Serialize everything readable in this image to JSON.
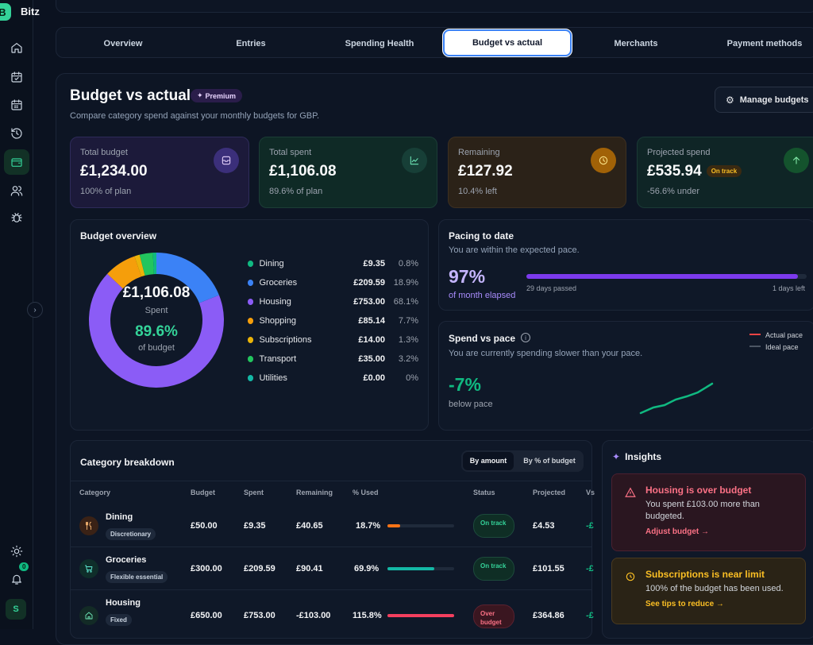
{
  "app": {
    "brand": "Bitz",
    "logo_letter": "B",
    "avatar": "S",
    "notif_badge": "0"
  },
  "tabs": [
    "Overview",
    "Entries",
    "Spending Health",
    "Budget vs actual",
    "Merchants",
    "Payment methods"
  ],
  "header": {
    "title": "Budget vs actual",
    "premium": "Premium",
    "subtitle": "Compare category spend against your monthly budgets for GBP.",
    "manage": "Manage budgets"
  },
  "cards": [
    {
      "label": "Total budget",
      "value": "£1,234.00",
      "note": "100% of plan",
      "icon": "inbox-icon"
    },
    {
      "label": "Total spent",
      "value": "£1,106.08",
      "note": "89.6% of plan",
      "icon": "chart-line-icon"
    },
    {
      "label": "Remaining",
      "value": "£127.92",
      "note": "10.4% left",
      "icon": "clock-icon"
    },
    {
      "label": "Projected spend",
      "value": "£535.94",
      "badge": "On track",
      "note": "-56.6% under",
      "icon": "arrow-up-icon"
    }
  ],
  "overview": {
    "title": "Budget overview",
    "center_value": "£1,106.08",
    "center_label": "Spent",
    "center_pct": "89.6%",
    "center_pct_label": "of budget",
    "legend": [
      {
        "name": "Dining",
        "amount": "£9.35",
        "pct": "0.8%",
        "color": "#10b981"
      },
      {
        "name": "Groceries",
        "amount": "£209.59",
        "pct": "18.9%",
        "color": "#3b82f6"
      },
      {
        "name": "Housing",
        "amount": "£753.00",
        "pct": "68.1%",
        "color": "#8b5cf6"
      },
      {
        "name": "Shopping",
        "amount": "£85.14",
        "pct": "7.7%",
        "color": "#f59e0b"
      },
      {
        "name": "Subscriptions",
        "amount": "£14.00",
        "pct": "1.3%",
        "color": "#eab308"
      },
      {
        "name": "Transport",
        "amount": "£35.00",
        "pct": "3.2%",
        "color": "#22c55e"
      },
      {
        "name": "Utilities",
        "amount": "£0.00",
        "pct": "0%",
        "color": "#14b8a6"
      }
    ]
  },
  "pacing": {
    "title": "Pacing to date",
    "sub": "You are within the expected pace.",
    "pct": "97%",
    "pct_label": "of month elapsed",
    "passed": "29 days passed",
    "left": "1 days left",
    "progress": 0.97
  },
  "spend_pace": {
    "title": "Spend vs pace",
    "sub": "You are currently spending slower than your pace.",
    "value": "-7%",
    "value_label": "below pace",
    "legend_actual": "Actual pace",
    "legend_ideal": "Ideal pace"
  },
  "breakdown": {
    "title": "Category breakdown",
    "toggle": [
      "By amount",
      "By % of budget"
    ],
    "columns": [
      "Category",
      "Budget",
      "Spent",
      "Remaining",
      "% Used",
      "Status",
      "Projected",
      "Vs"
    ],
    "rows": [
      {
        "name": "Dining",
        "tag": "Discretionary",
        "budget": "£50.00",
        "spent": "£9.35",
        "remaining": "£40.65",
        "used": "18.7%",
        "used_frac": 0.187,
        "status": "On track",
        "projected": "£4.53",
        "vs": "-£",
        "icon": "fork-icon"
      },
      {
        "name": "Groceries",
        "tag": "Flexible essential",
        "budget": "£300.00",
        "spent": "£209.59",
        "remaining": "£90.41",
        "used": "69.9%",
        "used_frac": 0.699,
        "status": "On track",
        "projected": "£101.55",
        "vs": "-£",
        "icon": "cart-icon"
      },
      {
        "name": "Housing",
        "tag": "Fixed",
        "budget": "£650.00",
        "spent": "£753.00",
        "remaining": "-£103.00",
        "used": "115.8%",
        "used_frac": 1.0,
        "status": "Over budget",
        "projected": "£364.86",
        "vs": "-£",
        "icon": "house-icon"
      }
    ]
  },
  "insights": {
    "title": "Insights",
    "items": [
      {
        "title": "Housing is over budget",
        "desc": "You spent £103.00 more than budgeted.",
        "action": "Adjust budget →"
      },
      {
        "title": "Subscriptions is near limit",
        "desc": "100% of the budget has been used.",
        "action": "See tips to reduce →"
      }
    ]
  }
}
